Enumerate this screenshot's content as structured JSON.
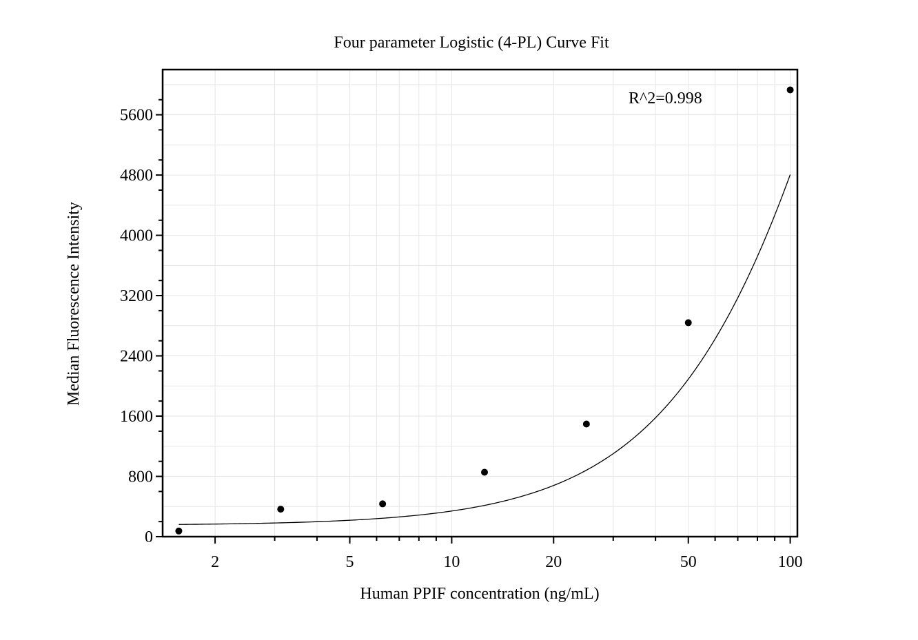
{
  "chart_data": {
    "type": "scatter",
    "title": "Four parameter Logistic (4-PL) Curve Fit",
    "xlabel": "Human PPIF concentration (ng/mL)",
    "ylabel": "Median Fluorescence Intensity",
    "x_scale": "log",
    "xlim": [
      1.4,
      105
    ],
    "ylim": [
      0,
      6200
    ],
    "x_ticks": [
      2,
      5,
      10,
      20,
      50,
      100
    ],
    "x_tick_labels": [
      "2",
      "5",
      "10",
      "20",
      "50",
      "100"
    ],
    "y_ticks": [
      0,
      800,
      1600,
      2400,
      3200,
      4000,
      4800,
      5600
    ],
    "y_tick_labels": [
      "0",
      "800",
      "1600",
      "2400",
      "3200",
      "4000",
      "4800",
      "5600"
    ],
    "grid": true,
    "annotation": "R^2=0.998",
    "series": [
      {
        "x": [
          1.5625,
          3.125,
          6.25,
          12.5,
          25,
          50,
          100
        ],
        "y": [
          75,
          365,
          435,
          855,
          1495,
          2840,
          5930
        ],
        "marker": "circle",
        "color": "#000000"
      }
    ],
    "fit_curve": {
      "type": "4PL",
      "a": 150,
      "d": 20000,
      "c": 220,
      "b": 1.5,
      "x_range": [
        1.5625,
        100
      ],
      "color": "#000000"
    }
  }
}
